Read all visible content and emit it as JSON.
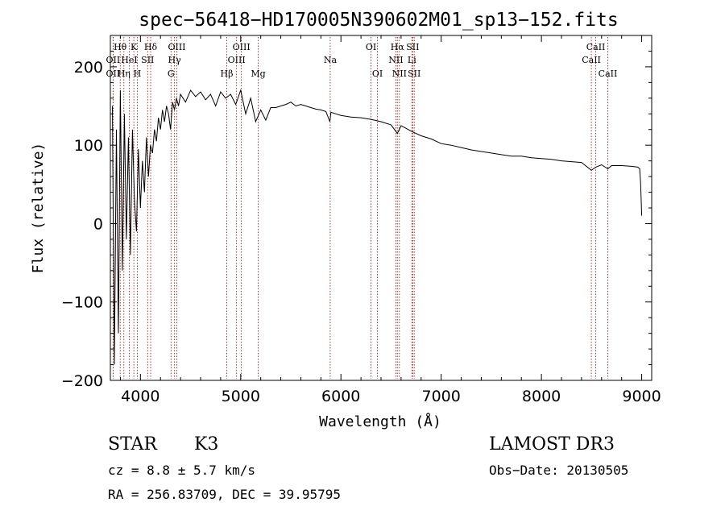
{
  "chart_data": {
    "type": "line",
    "title": "spec−56418−HD170005N390602M01_sp13−152.fits",
    "xlabel": "Wavelength (Å)",
    "ylabel": "Flux (relative)",
    "xlim": [
      3700,
      9100
    ],
    "ylim": [
      -200,
      240
    ],
    "xticks": [
      4000,
      5000,
      6000,
      7000,
      8000,
      9000
    ],
    "yticks": [
      200,
      100,
      0,
      -100,
      -200
    ],
    "ytick_labels": [
      "200",
      "100",
      "0",
      "−100",
      "−200"
    ],
    "grid": false,
    "series": [
      {
        "name": "spectrum",
        "x": [
          3720,
          3740,
          3760,
          3780,
          3800,
          3820,
          3840,
          3860,
          3880,
          3900,
          3920,
          3940,
          3960,
          3980,
          4000,
          4020,
          4040,
          4060,
          4080,
          4100,
          4120,
          4140,
          4160,
          4180,
          4200,
          4220,
          4240,
          4260,
          4280,
          4300,
          4320,
          4340,
          4360,
          4380,
          4400,
          4450,
          4500,
          4550,
          4600,
          4650,
          4700,
          4750,
          4800,
          4850,
          4900,
          4950,
          5000,
          5050,
          5100,
          5150,
          5200,
          5250,
          5300,
          5350,
          5400,
          5450,
          5500,
          5550,
          5600,
          5650,
          5700,
          5750,
          5800,
          5850,
          5890,
          5900,
          5950,
          6000,
          6100,
          6200,
          6300,
          6400,
          6500,
          6563,
          6600,
          6700,
          6800,
          6900,
          7000,
          7100,
          7200,
          7300,
          7400,
          7500,
          7600,
          7700,
          7800,
          7900,
          8000,
          8100,
          8200,
          8300,
          8400,
          8498,
          8542,
          8600,
          8662,
          8700,
          8800,
          8900,
          8960,
          8980,
          8990,
          9000
        ],
        "values": [
          150,
          -180,
          120,
          -140,
          170,
          -60,
          140,
          -20,
          110,
          -40,
          120,
          30,
          -10,
          95,
          20,
          80,
          40,
          110,
          60,
          100,
          90,
          120,
          105,
          135,
          120,
          145,
          130,
          150,
          140,
          120,
          155,
          145,
          160,
          150,
          165,
          155,
          170,
          162,
          168,
          158,
          165,
          150,
          168,
          160,
          165,
          152,
          170,
          140,
          160,
          130,
          145,
          132,
          148,
          148,
          150,
          152,
          155,
          150,
          152,
          150,
          148,
          146,
          145,
          143,
          130,
          142,
          140,
          138,
          136,
          135,
          133,
          130,
          126,
          115,
          125,
          118,
          112,
          108,
          102,
          100,
          97,
          94,
          92,
          90,
          88,
          86,
          86,
          84,
          83,
          82,
          80,
          79,
          78,
          68,
          72,
          75,
          70,
          74,
          74,
          73,
          72,
          70,
          50,
          10
        ]
      }
    ],
    "annotations": [
      {
        "label": "Hθ",
        "wavelength": 3798,
        "row": 1
      },
      {
        "label": "OII",
        "wavelength": 3727,
        "row": 2
      },
      {
        "label": "OII",
        "wavelength": 3727,
        "row": 3
      },
      {
        "label": "Hη",
        "wavelength": 3835,
        "row": 3
      },
      {
        "label": "HeI",
        "wavelength": 3889,
        "row": 2
      },
      {
        "label": "K",
        "wavelength": 3934,
        "row": 1
      },
      {
        "label": "H",
        "wavelength": 3969,
        "row": 3
      },
      {
        "label": "SII",
        "wavelength": 4072,
        "row": 2
      },
      {
        "label": "Hδ",
        "wavelength": 4102,
        "row": 1
      },
      {
        "label": "OIII",
        "wavelength": 4363,
        "row": 1
      },
      {
        "label": "Hγ",
        "wavelength": 4340,
        "row": 2
      },
      {
        "label": "G",
        "wavelength": 4305,
        "row": 3
      },
      {
        "label": "OIII",
        "wavelength": 5007,
        "row": 1
      },
      {
        "label": "OIII",
        "wavelength": 4959,
        "row": 2
      },
      {
        "label": "Hβ",
        "wavelength": 4861,
        "row": 3
      },
      {
        "label": "Mg",
        "wavelength": 5175,
        "row": 3
      },
      {
        "label": "Na",
        "wavelength": 5893,
        "row": 2
      },
      {
        "label": "OI",
        "wavelength": 6300,
        "row": 1
      },
      {
        "label": "OI",
        "wavelength": 6364,
        "row": 3
      },
      {
        "label": "Hα",
        "wavelength": 6563,
        "row": 1
      },
      {
        "label": "NII",
        "wavelength": 6548,
        "row": 2
      },
      {
        "label": "NII",
        "wavelength": 6583,
        "row": 3
      },
      {
        "label": "SII",
        "wavelength": 6716,
        "row": 1
      },
      {
        "label": "Li",
        "wavelength": 6708,
        "row": 2
      },
      {
        "label": "SII",
        "wavelength": 6731,
        "row": 3
      },
      {
        "label": "CaII",
        "wavelength": 8542,
        "row": 1
      },
      {
        "label": "CaII",
        "wavelength": 8498,
        "row": 2
      },
      {
        "label": "CaII",
        "wavelength": 8662,
        "row": 3
      }
    ]
  },
  "info": {
    "class": "STAR",
    "subclass": "K3",
    "survey": "LAMOST DR3",
    "cz": "cz = 8.8 ± 5.7 km/s",
    "obs_date": "Obs−Date: 20130505",
    "coords": "RA = 256.83709, DEC =  39.95795"
  }
}
